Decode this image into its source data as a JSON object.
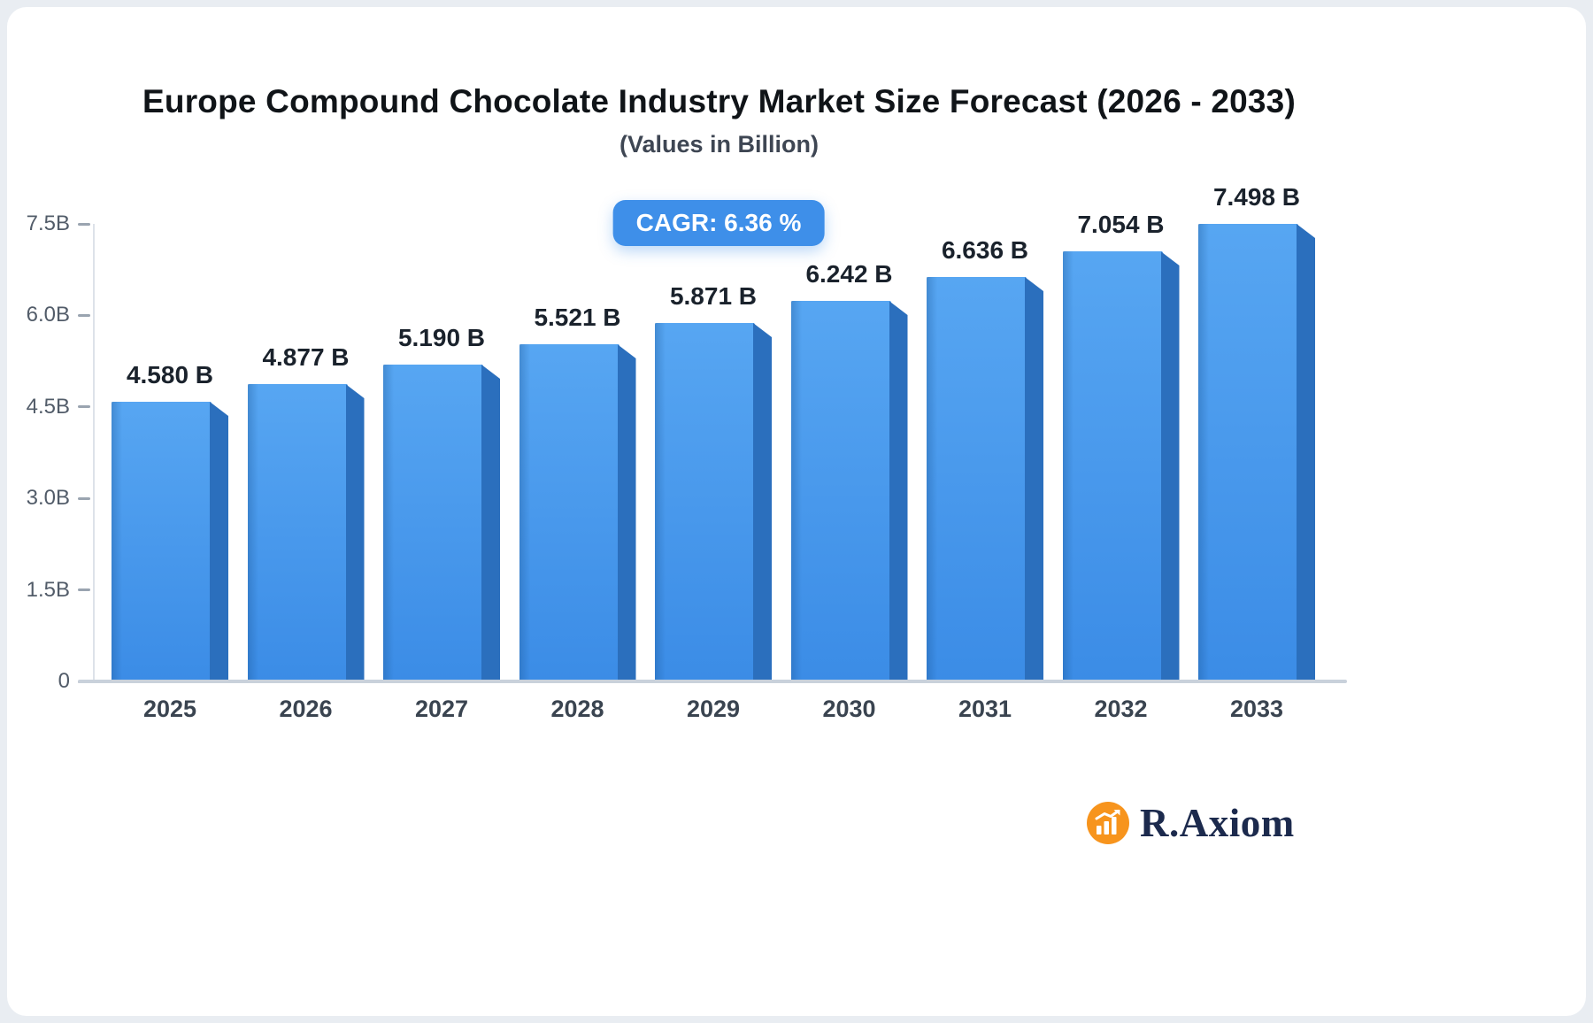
{
  "page": {
    "cagr_badge": "CAGR: 6.36 %"
  },
  "brand": {
    "name": "R.Axiom",
    "icon": "bar-chart-icon",
    "icon_color": "#F7941D",
    "text_color": "#1C2A4D"
  },
  "colors": {
    "bar_top": "#57A6F2",
    "bar_bottom": "#3B8CE6",
    "bar_side": "#2B6FBD",
    "badge": "#3E8FE9",
    "axis": "#C9D1DB",
    "tick_text": "#525C69",
    "label_text": "#1A222C"
  },
  "chart_data": {
    "type": "bar",
    "title": "Europe Compound Chocolate Industry Market Size Forecast (2026 - 2033)",
    "subtitle": "(Values in Billion)",
    "annotation": "CAGR: 6.36 %",
    "categories": [
      "2025",
      "2026",
      "2027",
      "2028",
      "2029",
      "2030",
      "2031",
      "2032",
      "2033"
    ],
    "values": [
      4.58,
      4.877,
      5.19,
      5.521,
      5.871,
      6.242,
      6.636,
      7.054,
      7.498
    ],
    "value_labels": [
      "4.580 B",
      "4.877 B",
      "5.190 B",
      "5.521 B",
      "5.871 B",
      "6.242 B",
      "6.636 B",
      "7.054 B",
      "7.498 B"
    ],
    "xlabel": "",
    "ylabel": "",
    "ylim": [
      0,
      7.5
    ],
    "yticks": [
      0,
      1.5,
      3.0,
      4.5,
      6.0,
      7.5
    ],
    "ytick_labels": [
      "0",
      "1.5B",
      "3.0B",
      "4.5B",
      "6.0B",
      "7.5B"
    ],
    "grid": false,
    "legend": false
  }
}
